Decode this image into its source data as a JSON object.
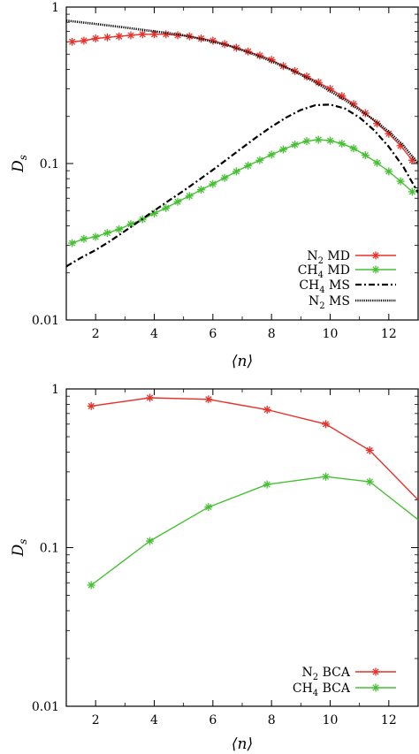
{
  "chart_data": [
    {
      "type": "line",
      "scale_y": "log",
      "xlim": [
        1,
        13
      ],
      "ylim": [
        0.01,
        1
      ],
      "xlabel": "⟨n⟩",
      "ylabel": "Ds",
      "x_ticks": [
        2,
        4,
        6,
        8,
        10,
        12
      ],
      "y_ticks": [
        0.01,
        0.1,
        1
      ],
      "y_tick_labels": [
        "0.01",
        "0.1",
        "1"
      ],
      "legend_position": "bottom-right",
      "series": [
        {
          "name": "N2 MD",
          "name_main": "N",
          "name_sub": "2",
          "name_rest": " MD",
          "style": "markers-line",
          "color": "#e8302a",
          "x": [
            1.2,
            1.6,
            2.0,
            2.4,
            2.8,
            3.2,
            3.6,
            4.0,
            4.4,
            4.8,
            5.2,
            5.6,
            6.0,
            6.4,
            6.8,
            7.2,
            7.6,
            8.0,
            8.4,
            8.8,
            9.2,
            9.6,
            10.0,
            10.4,
            10.8,
            11.2,
            11.6,
            12.0,
            12.4,
            12.8
          ],
          "y": [
            0.6,
            0.61,
            0.63,
            0.64,
            0.65,
            0.66,
            0.67,
            0.67,
            0.67,
            0.66,
            0.65,
            0.63,
            0.61,
            0.58,
            0.55,
            0.52,
            0.49,
            0.46,
            0.42,
            0.39,
            0.36,
            0.33,
            0.3,
            0.27,
            0.24,
            0.21,
            0.18,
            0.155,
            0.13,
            0.105
          ]
        },
        {
          "name": "CH4 MD",
          "name_main": "CH",
          "name_sub": "4",
          "name_rest": " MD",
          "style": "markers-line",
          "color": "#46c033",
          "x": [
            1.2,
            1.6,
            2.0,
            2.4,
            2.8,
            3.2,
            3.6,
            4.0,
            4.4,
            4.8,
            5.2,
            5.6,
            6.0,
            6.4,
            6.8,
            7.2,
            7.6,
            8.0,
            8.4,
            8.8,
            9.2,
            9.6,
            10.0,
            10.4,
            10.8,
            11.2,
            11.6,
            12.0,
            12.4,
            12.8
          ],
          "y": [
            0.031,
            0.033,
            0.034,
            0.036,
            0.038,
            0.041,
            0.044,
            0.048,
            0.052,
            0.057,
            0.062,
            0.068,
            0.074,
            0.081,
            0.089,
            0.097,
            0.105,
            0.114,
            0.123,
            0.132,
            0.139,
            0.142,
            0.14,
            0.134,
            0.125,
            0.113,
            0.101,
            0.089,
            0.077,
            0.066
          ]
        },
        {
          "name": "CH4 MS",
          "name_main": "CH",
          "name_sub": "4",
          "name_rest": " MS",
          "style": "dash-dot",
          "color": "#000000",
          "x": [
            1.0,
            1.5,
            2.0,
            2.5,
            3.0,
            3.5,
            4.0,
            4.5,
            5.0,
            5.5,
            6.0,
            6.5,
            7.0,
            7.5,
            8.0,
            8.5,
            9.0,
            9.5,
            10.0,
            10.5,
            11.0,
            11.5,
            12.0,
            12.5,
            13.0
          ],
          "y": [
            0.022,
            0.025,
            0.028,
            0.032,
            0.037,
            0.043,
            0.05,
            0.058,
            0.067,
            0.078,
            0.091,
            0.107,
            0.126,
            0.148,
            0.172,
            0.197,
            0.22,
            0.236,
            0.238,
            0.225,
            0.197,
            0.163,
            0.128,
            0.095,
            0.065
          ]
        },
        {
          "name": "N2 MS",
          "name_main": "N",
          "name_sub": "2",
          "name_rest": " MS",
          "style": "dotted",
          "color": "#000000",
          "x": [
            1.0,
            1.5,
            2.0,
            2.5,
            3.0,
            3.5,
            4.0,
            4.5,
            5.0,
            5.5,
            6.0,
            6.5,
            7.0,
            7.5,
            8.0,
            8.5,
            9.0,
            9.5,
            10.0,
            10.5,
            11.0,
            11.5,
            12.0,
            12.5,
            13.0
          ],
          "y": [
            0.82,
            0.8,
            0.78,
            0.76,
            0.74,
            0.72,
            0.7,
            0.68,
            0.66,
            0.63,
            0.6,
            0.57,
            0.53,
            0.49,
            0.45,
            0.41,
            0.37,
            0.33,
            0.29,
            0.255,
            0.22,
            0.19,
            0.16,
            0.13,
            0.1
          ]
        }
      ]
    },
    {
      "type": "line",
      "scale_y": "log",
      "xlim": [
        1,
        13
      ],
      "ylim": [
        0.01,
        1
      ],
      "xlabel": "⟨n⟩",
      "ylabel": "Ds",
      "x_ticks": [
        2,
        4,
        6,
        8,
        10,
        12
      ],
      "y_ticks": [
        0.01,
        0.1,
        1
      ],
      "y_tick_labels": [
        "0.01",
        "0.1",
        "1"
      ],
      "legend_position": "bottom-right",
      "series": [
        {
          "name": "N2 BCA",
          "name_main": "N",
          "name_sub": "2",
          "name_rest": " BCA",
          "style": "markers-line",
          "color": "#e8302a",
          "x": [
            1.85,
            3.85,
            5.85,
            7.85,
            9.85,
            11.35,
            13.0
          ],
          "y": [
            0.78,
            0.88,
            0.86,
            0.74,
            0.6,
            0.41,
            0.2
          ],
          "marker_count": 6
        },
        {
          "name": "CH4 BCA",
          "name_main": "CH",
          "name_sub": "4",
          "name_rest": " BCA",
          "style": "markers-line",
          "color": "#46c033",
          "x": [
            1.85,
            3.85,
            5.85,
            7.85,
            9.85,
            11.35,
            13.0
          ],
          "y": [
            0.058,
            0.11,
            0.18,
            0.25,
            0.28,
            0.26,
            0.15
          ],
          "marker_count": 6
        }
      ]
    }
  ]
}
